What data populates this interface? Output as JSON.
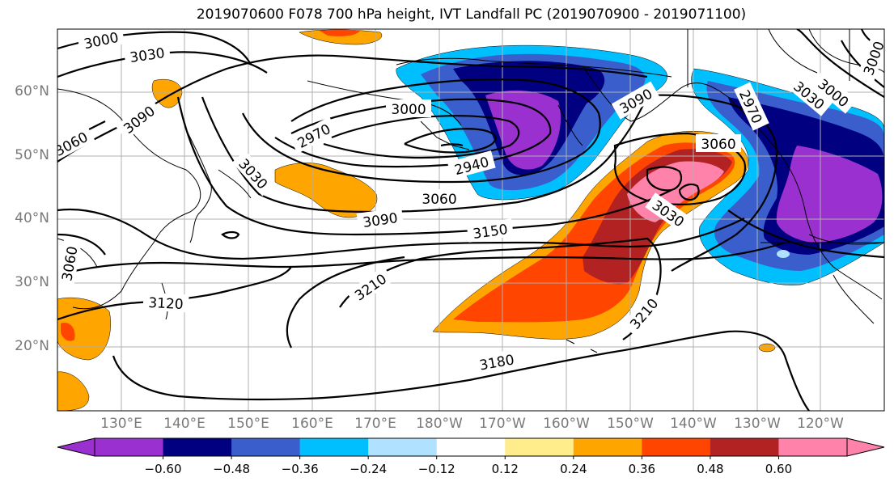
{
  "title": "2019070600 F078 700 hPa height, IVT Landfall PC (2019070900 - 2019071100)",
  "lat_labels": [
    "60°N",
    "50°N",
    "40°N",
    "30°N",
    "20°N"
  ],
  "lon_labels": [
    "130°E",
    "140°E",
    "150°E",
    "160°E",
    "170°E",
    "180°W",
    "170°W",
    "160°W",
    "150°W",
    "140°W",
    "130°W",
    "120°W"
  ],
  "colorbar": {
    "colors": [
      "#9b30d0",
      "#000080",
      "#3a5fcd",
      "#00bfff",
      "#b0e2ff",
      "#ffffff",
      "#ffec8b",
      "#ffa500",
      "#ff4500",
      "#b22222",
      "#ff82ab"
    ],
    "ticks": [
      "−0.60",
      "−0.48",
      "−0.36",
      "−0.24",
      "−0.12",
      "0.12",
      "0.24",
      "0.36",
      "0.48",
      "0.60"
    ]
  },
  "contour_labels": [
    "3000",
    "3030",
    "3090",
    "3060",
    "3000",
    "2970",
    "2940",
    "3030",
    "3060",
    "3090",
    "3150",
    "3060",
    "3030",
    "3090",
    "3000",
    "3030",
    "3000",
    "2970",
    "3060",
    "3120",
    "3210",
    "3210",
    "3180"
  ],
  "map_extent": {
    "lon_min": 120,
    "lon_max": 250,
    "lat_min": 10,
    "lat_max": 70
  }
}
